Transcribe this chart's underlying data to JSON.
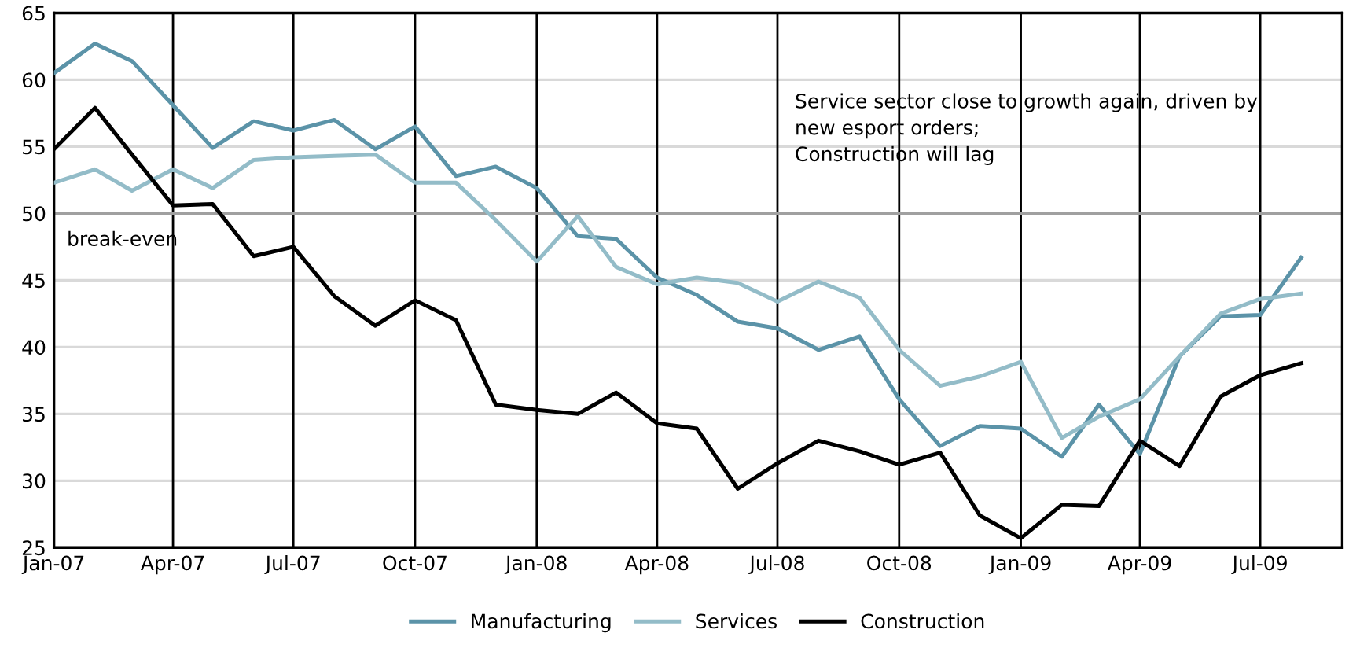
{
  "chart_data": {
    "type": "line",
    "x": [
      "2007-01",
      "2007-02",
      "2007-03",
      "2007-04",
      "2007-05",
      "2007-06",
      "2007-07",
      "2007-08",
      "2007-09",
      "2007-10",
      "2007-11",
      "2007-12",
      "2008-01",
      "2008-02",
      "2008-03",
      "2008-04",
      "2008-05",
      "2008-06",
      "2008-07",
      "2008-08",
      "2008-09",
      "2008-10",
      "2008-11",
      "2008-12",
      "2009-01",
      "2009-02",
      "2009-03",
      "2009-04",
      "2009-05",
      "2009-06",
      "2009-07",
      "2009-08"
    ],
    "series": [
      {
        "name": "Manufacturing",
        "color": "#5b93a8",
        "values": [
          60.5,
          62.7,
          61.4,
          58.1,
          54.9,
          56.9,
          56.2,
          57.0,
          54.8,
          56.5,
          52.8,
          53.5,
          51.9,
          48.3,
          48.1,
          45.2,
          43.9,
          41.9,
          41.4,
          39.8,
          40.8,
          36.1,
          32.6,
          34.1,
          33.9,
          31.8,
          35.7,
          32.0,
          39.3,
          42.3,
          42.4,
          46.7
        ]
      },
      {
        "name": "Services",
        "color": "#93bcc8",
        "values": [
          52.3,
          53.3,
          51.7,
          53.3,
          51.9,
          54.0,
          54.2,
          54.3,
          54.4,
          52.3,
          52.3,
          49.5,
          46.4,
          49.8,
          46.0,
          44.7,
          45.2,
          44.8,
          43.4,
          44.9,
          43.7,
          39.8,
          37.1,
          37.8,
          38.9,
          33.2,
          34.8,
          36.1,
          39.3,
          42.5,
          43.6,
          44.0
        ]
      },
      {
        "name": "Construction",
        "color": "#000000",
        "values": [
          54.8,
          57.9,
          54.4,
          50.6,
          50.7,
          46.8,
          47.5,
          43.8,
          41.6,
          43.5,
          42.0,
          35.7,
          35.3,
          35.0,
          36.6,
          34.3,
          33.9,
          29.4,
          31.3,
          33.0,
          32.2,
          31.2,
          32.1,
          27.4,
          25.7,
          28.2,
          28.1,
          33.0,
          31.1,
          36.3,
          37.9,
          38.8
        ]
      }
    ],
    "xlim": [
      "2007-01",
      "2009-09"
    ],
    "xticks": [
      {
        "value": "2007-01",
        "label": "Jan-07"
      },
      {
        "value": "2007-04",
        "label": "Apr-07"
      },
      {
        "value": "2007-07",
        "label": "Jul-07"
      },
      {
        "value": "2007-10",
        "label": "Oct-07"
      },
      {
        "value": "2008-01",
        "label": "Jan-08"
      },
      {
        "value": "2008-04",
        "label": "Apr-08"
      },
      {
        "value": "2008-07",
        "label": "Jul-08"
      },
      {
        "value": "2008-10",
        "label": "Oct-08"
      },
      {
        "value": "2009-01",
        "label": "Jan-09"
      },
      {
        "value": "2009-04",
        "label": "Apr-09"
      },
      {
        "value": "2009-07",
        "label": "Jul-09"
      }
    ],
    "ylim": [
      25,
      65
    ],
    "yticks": [
      25,
      30,
      35,
      40,
      45,
      50,
      55,
      60,
      65
    ],
    "grid": true,
    "ref_lines": [
      {
        "axis": "y",
        "value": 50,
        "label": "break-even",
        "color": "#a0a0a0"
      }
    ],
    "annotations": [
      {
        "text": "Service sector close to growth again, driven by\nnew esport orders;\nConstruction will lag"
      }
    ],
    "legend": "bottom",
    "marker": "none",
    "line_style": "solid"
  }
}
